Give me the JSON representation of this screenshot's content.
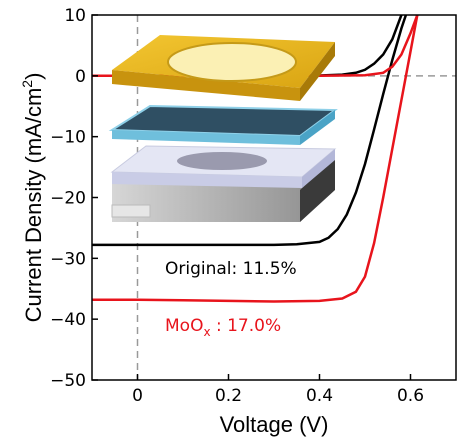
{
  "chart_data": {
    "type": "line",
    "xlabel": "Voltage (V)",
    "ylabel": {
      "text": "Current Density (mA/cm",
      "sup": "2",
      "end": ")"
    },
    "xlim": [
      -0.1,
      0.7
    ],
    "ylim": [
      -50,
      10
    ],
    "xticks": [
      0,
      0.2,
      0.4,
      0.6
    ],
    "yticks": [
      {
        "value": -50,
        "label": "−50"
      },
      {
        "value": -40,
        "label": "−40"
      },
      {
        "value": -30,
        "label": "−30"
      },
      {
        "value": -20,
        "label": "−20"
      },
      {
        "value": -10,
        "label": "−10"
      },
      0,
      10
    ],
    "vlines": [
      0
    ],
    "hlines": [
      0
    ],
    "series": [
      {
        "name": "Original: 11.5%",
        "color": "#000000",
        "x": [
          -0.1,
          0,
          0.1,
          0.2,
          0.3,
          0.35,
          0.4,
          0.42,
          0.44,
          0.46,
          0.48,
          0.5,
          0.52,
          0.54,
          0.56,
          0.58,
          0.59
        ],
        "values": [
          -27.8,
          -27.8,
          -27.8,
          -27.8,
          -27.8,
          -27.7,
          -27.3,
          -26.6,
          -25.2,
          -22.8,
          -19.2,
          -14.5,
          -8.8,
          -3,
          2.6,
          7.8,
          10
        ]
      },
      {
        "name": {
          "text": "MoO",
          "sub": "x",
          "end": " : 17.0%"
        },
        "color": "#e8141c",
        "x": [
          -0.1,
          0,
          0.1,
          0.2,
          0.3,
          0.4,
          0.45,
          0.48,
          0.5,
          0.52,
          0.54,
          0.56,
          0.58,
          0.6,
          0.615
        ],
        "values": [
          -36.8,
          -36.8,
          -36.9,
          -37,
          -37.1,
          -37,
          -36.6,
          -35.5,
          -33,
          -27.5,
          -20,
          -12,
          -4,
          4,
          10
        ]
      },
      {
        "color": "#000000",
        "x": [
          -0.1,
          0,
          0.2,
          0.4,
          0.45,
          0.48,
          0.5,
          0.52,
          0.54,
          0.56,
          0.58
        ],
        "values": [
          0,
          0,
          0,
          0.05,
          0.2,
          0.5,
          1,
          2,
          3.5,
          6,
          10
        ]
      },
      {
        "color": "#e8141c",
        "x": [
          -0.1,
          0,
          0.2,
          0.4,
          0.5,
          0.54,
          0.56,
          0.58,
          0.6,
          0.615
        ],
        "values": [
          0,
          0,
          0,
          0,
          0.1,
          0.5,
          1.5,
          3.5,
          7,
          10
        ]
      }
    ]
  }
}
